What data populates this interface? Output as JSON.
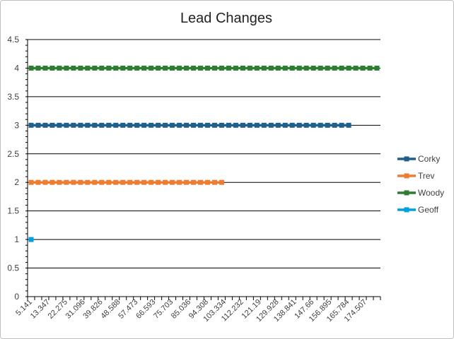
{
  "chart_data": {
    "type": "line",
    "title": "Lead Changes",
    "xlabel": "",
    "ylabel": "",
    "ylim": [
      0,
      4.5
    ],
    "ytick_step": 0.5,
    "grid": "horizontal",
    "legend_position": "right",
    "x_tick_labels": [
      "5.141",
      "13.347",
      "22.275",
      "31.096",
      "39.826",
      "48.588",
      "57.473",
      "66.593",
      "75.703",
      "85.036",
      "94.308",
      "103.334",
      "112.232",
      "121.19",
      "129.928",
      "138.841",
      "147.66",
      "156.895",
      "165.784",
      "174.507"
    ],
    "category_count": 50,
    "series": [
      {
        "name": "Corky",
        "color": "#1f5f8b",
        "y": 3,
        "points": 46
      },
      {
        "name": "Trev",
        "color": "#ed7d31",
        "y": 2,
        "points": 28
      },
      {
        "name": "Woody",
        "color": "#2e7d32",
        "y": 4,
        "points": 50
      },
      {
        "name": "Geoff",
        "color": "#00a0e0",
        "y": 1,
        "points": 1
      }
    ]
  }
}
